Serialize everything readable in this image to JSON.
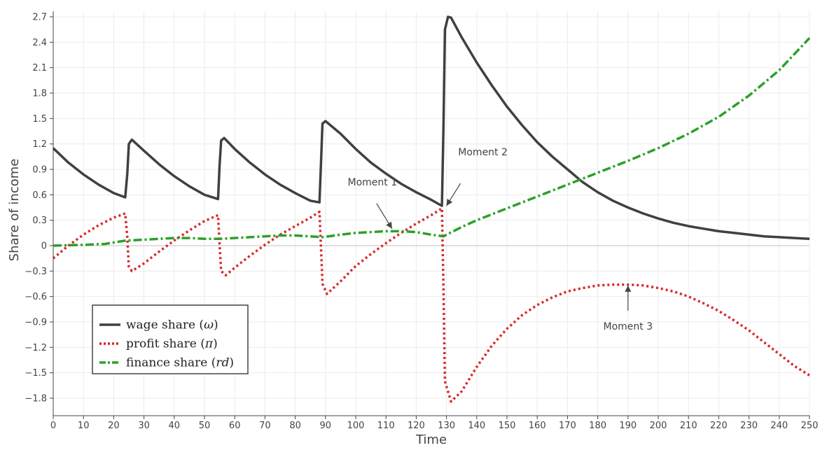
{
  "chart_data": {
    "type": "line",
    "title": "",
    "xlabel": "Time",
    "ylabel": "Share of income",
    "xlim": [
      0,
      250
    ],
    "ylim": [
      -2.1,
      2.8
    ],
    "x_ticks": [
      0,
      10,
      20,
      30,
      40,
      50,
      60,
      70,
      80,
      90,
      100,
      110,
      120,
      130,
      140,
      150,
      160,
      170,
      180,
      190,
      200,
      210,
      220,
      230,
      240,
      250
    ],
    "y_ticks": [
      2.7,
      2.4,
      2.1,
      1.8,
      1.5,
      1.2,
      0.9,
      0.6,
      0.3,
      0,
      -0.3,
      -0.6,
      -0.9,
      -1.2,
      -1.5,
      -1.8
    ],
    "y_tick_labels": [
      "2.7",
      "2.4",
      "2.1",
      "1.8",
      "1.5",
      "1.2",
      "0.9",
      "0.6",
      "0.3",
      "0",
      "−0.3",
      "−0.6",
      "−0.9",
      "−1.2",
      "−1.5",
      "−1.8"
    ],
    "grid": true,
    "legend_position": "bottom-left",
    "series": [
      {
        "name": "wage share (ω)",
        "name_main": "wage share",
        "name_symbol": "ω",
        "color": "#404040",
        "style": "solid",
        "x": [
          0,
          5,
          10,
          15,
          20,
          23.8,
          24.5,
          25,
          26,
          30,
          35,
          40,
          45,
          50,
          54.5,
          55,
          55.5,
          56.5,
          60,
          65,
          70,
          75,
          80,
          85,
          88,
          88.5,
          89,
          90,
          95,
          100,
          105,
          110,
          115,
          120,
          125,
          128.5,
          129,
          129.5,
          130.5,
          131.5,
          135,
          140,
          145,
          150,
          155,
          160,
          165,
          170,
          175,
          180,
          185,
          190,
          195,
          200,
          205,
          210,
          215,
          220,
          225,
          230,
          235,
          240,
          245,
          250
        ],
        "values": [
          1.15,
          0.98,
          0.84,
          0.72,
          0.62,
          0.57,
          0.85,
          1.2,
          1.25,
          1.12,
          0.96,
          0.82,
          0.7,
          0.6,
          0.55,
          0.95,
          1.24,
          1.27,
          1.14,
          0.98,
          0.84,
          0.72,
          0.62,
          0.53,
          0.51,
          0.95,
          1.44,
          1.47,
          1.32,
          1.14,
          0.98,
          0.85,
          0.73,
          0.63,
          0.54,
          0.47,
          1.4,
          2.55,
          2.7,
          2.69,
          2.46,
          2.16,
          1.89,
          1.64,
          1.42,
          1.22,
          1.05,
          0.9,
          0.75,
          0.63,
          0.53,
          0.45,
          0.38,
          0.32,
          0.27,
          0.23,
          0.2,
          0.17,
          0.15,
          0.13,
          0.11,
          0.1,
          0.09,
          0.08
        ]
      },
      {
        "name": "profit share (π)",
        "name_main": "profit share",
        "name_symbol": "π",
        "color": "#d62728",
        "style": "dotted",
        "x": [
          0,
          5,
          10,
          15,
          20,
          23.8,
          24.5,
          25,
          26,
          30,
          35,
          40,
          45,
          50,
          54.5,
          55,
          55.5,
          57,
          60,
          65,
          70,
          75,
          80,
          85,
          88,
          88.5,
          89,
          90.5,
          95,
          100,
          105,
          110,
          115,
          120,
          125,
          128.5,
          129,
          129.5,
          131.5,
          135,
          140,
          145,
          150,
          155,
          160,
          165,
          170,
          175,
          180,
          185,
          190,
          195,
          200,
          205,
          210,
          215,
          220,
          225,
          230,
          235,
          240,
          245,
          250
        ],
        "values": [
          -0.15,
          0.0,
          0.13,
          0.24,
          0.33,
          0.38,
          0.1,
          -0.25,
          -0.3,
          -0.21,
          -0.07,
          0.06,
          0.18,
          0.29,
          0.36,
          0.0,
          -0.3,
          -0.35,
          -0.26,
          -0.12,
          0.01,
          0.13,
          0.23,
          0.33,
          0.4,
          0.0,
          -0.45,
          -0.57,
          -0.42,
          -0.24,
          -0.1,
          0.03,
          0.15,
          0.26,
          0.36,
          0.44,
          -0.5,
          -1.6,
          -1.84,
          -1.72,
          -1.43,
          -1.18,
          -0.98,
          -0.82,
          -0.7,
          -0.61,
          -0.54,
          -0.5,
          -0.47,
          -0.46,
          -0.46,
          -0.47,
          -0.5,
          -0.54,
          -0.6,
          -0.68,
          -0.77,
          -0.88,
          -1.0,
          -1.14,
          -1.28,
          -1.42,
          -1.53
        ]
      },
      {
        "name": "finance share (rd)",
        "name_main": "finance share",
        "name_symbol": "rd",
        "color": "#2ca02c",
        "style": "dashdot",
        "x": [
          0,
          10,
          17,
          24,
          30,
          35,
          40,
          45,
          50,
          55,
          60,
          65,
          70,
          75,
          80,
          85,
          89,
          95,
          100,
          105,
          110,
          115,
          120,
          125,
          129,
          135,
          140,
          150,
          160,
          170,
          180,
          190,
          200,
          210,
          220,
          230,
          240,
          250
        ],
        "values": [
          0.0,
          0.01,
          0.02,
          0.06,
          0.07,
          0.08,
          0.09,
          0.09,
          0.08,
          0.08,
          0.09,
          0.1,
          0.11,
          0.12,
          0.12,
          0.11,
          0.1,
          0.13,
          0.15,
          0.16,
          0.17,
          0.17,
          0.16,
          0.13,
          0.11,
          0.22,
          0.3,
          0.44,
          0.58,
          0.72,
          0.86,
          1.0,
          1.15,
          1.32,
          1.52,
          1.77,
          2.07,
          2.45
        ]
      }
    ],
    "annotations": [
      {
        "text": "Moment 1",
        "x": 112,
        "y": 0.2,
        "arrow": true
      },
      {
        "text": "Moment 2",
        "x": 130,
        "y": 0.47,
        "arrow": true
      },
      {
        "text": "Moment 3",
        "x": 190,
        "y": -0.47,
        "arrow": true
      }
    ]
  }
}
